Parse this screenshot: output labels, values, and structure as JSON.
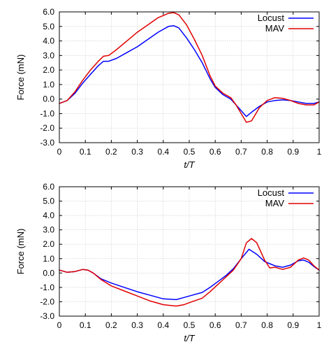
{
  "chart_data": [
    {
      "type": "line",
      "xlabel": "t/T",
      "ylabel": "Force (mN)",
      "xlim": [
        0,
        1
      ],
      "ylim": [
        -3,
        6
      ],
      "xticks": [
        0,
        0.1,
        0.2,
        0.3,
        0.4,
        0.5,
        0.6,
        0.7,
        0.8,
        0.9,
        1
      ],
      "xtick_labels": [
        "0",
        "0.1",
        "0.2",
        "0.3",
        "0.4",
        "0.5",
        "0.6",
        "0.7",
        "0.8",
        "0.9",
        "1"
      ],
      "yticks": [
        -3,
        -2,
        -1,
        0,
        1,
        2,
        3,
        4,
        5,
        6
      ],
      "ytick_labels": [
        "-3.0",
        "-2.0",
        "-1.0",
        "0.0",
        "1.0",
        "2.0",
        "3.0",
        "4.0",
        "5.0",
        "6.0"
      ],
      "grid": true,
      "legend_position": "top-right",
      "series": [
        {
          "name": "Locust",
          "color": "#0000ff",
          "x": [
            0,
            0.03,
            0.06,
            0.09,
            0.12,
            0.15,
            0.17,
            0.19,
            0.22,
            0.26,
            0.3,
            0.34,
            0.38,
            0.42,
            0.44,
            0.46,
            0.49,
            0.52,
            0.55,
            0.58,
            0.6,
            0.63,
            0.66,
            0.68,
            0.7,
            0.72,
            0.74,
            0.77,
            0.8,
            0.83,
            0.86,
            0.89,
            0.92,
            0.95,
            0.98,
            1
          ],
          "y": [
            -0.3,
            -0.1,
            0.4,
            1.1,
            1.7,
            2.3,
            2.6,
            2.6,
            2.8,
            3.2,
            3.6,
            4.1,
            4.6,
            5.0,
            5.05,
            4.9,
            4.2,
            3.4,
            2.5,
            1.4,
            0.8,
            0.3,
            0.0,
            -0.4,
            -0.8,
            -1.2,
            -0.9,
            -0.5,
            -0.2,
            -0.1,
            -0.05,
            -0.1,
            -0.2,
            -0.3,
            -0.3,
            -0.2
          ]
        },
        {
          "name": "MAV",
          "color": "#e00000",
          "x": [
            0,
            0.03,
            0.06,
            0.09,
            0.12,
            0.15,
            0.17,
            0.19,
            0.22,
            0.26,
            0.3,
            0.34,
            0.38,
            0.42,
            0.44,
            0.46,
            0.49,
            0.52,
            0.55,
            0.58,
            0.6,
            0.63,
            0.66,
            0.68,
            0.7,
            0.72,
            0.74,
            0.77,
            0.8,
            0.83,
            0.86,
            0.89,
            0.92,
            0.95,
            0.98,
            1
          ],
          "y": [
            -0.3,
            -0.1,
            0.5,
            1.3,
            2.0,
            2.6,
            2.95,
            3.0,
            3.4,
            4.0,
            4.6,
            5.1,
            5.6,
            5.9,
            5.95,
            5.8,
            5.1,
            4.1,
            3.0,
            1.6,
            0.9,
            0.4,
            0.1,
            -0.4,
            -1.0,
            -1.6,
            -1.5,
            -0.6,
            -0.1,
            0.1,
            0.05,
            -0.1,
            -0.3,
            -0.4,
            -0.4,
            -0.2
          ]
        }
      ]
    },
    {
      "type": "line",
      "xlabel": "t/T",
      "ylabel": "Force (mN)",
      "xlim": [
        0,
        1
      ],
      "ylim": [
        -3,
        6
      ],
      "xticks": [
        0,
        0.1,
        0.2,
        0.3,
        0.4,
        0.5,
        0.6,
        0.7,
        0.8,
        0.9,
        1
      ],
      "xtick_labels": [
        "0",
        "0.1",
        "0.2",
        "0.3",
        "0.4",
        "0.5",
        "0.6",
        "0.7",
        "0.8",
        "0.9",
        "1"
      ],
      "yticks": [
        -3,
        -2,
        -1,
        0,
        1,
        2,
        3,
        4,
        5,
        6
      ],
      "ytick_labels": [
        "-3.0",
        "-2.0",
        "-1.0",
        "0.0",
        "1.0",
        "2.0",
        "3.0",
        "4.0",
        "5.0",
        "6.0"
      ],
      "grid": true,
      "legend_position": "top-right",
      "series": [
        {
          "name": "Locust",
          "color": "#0000ff",
          "x": [
            0,
            0.03,
            0.06,
            0.09,
            0.11,
            0.13,
            0.16,
            0.2,
            0.25,
            0.3,
            0.35,
            0.4,
            0.45,
            0.48,
            0.51,
            0.55,
            0.58,
            0.61,
            0.64,
            0.67,
            0.7,
            0.73,
            0.76,
            0.79,
            0.81,
            0.83,
            0.86,
            0.89,
            0.92,
            0.94,
            0.96,
            0.98,
            1
          ],
          "y": [
            0.2,
            0.05,
            0.1,
            0.25,
            0.2,
            0.0,
            -0.4,
            -0.7,
            -1.0,
            -1.3,
            -1.55,
            -1.8,
            -1.85,
            -1.7,
            -1.55,
            -1.35,
            -1.0,
            -0.6,
            -0.2,
            0.3,
            1.0,
            1.65,
            1.3,
            0.8,
            0.65,
            0.5,
            0.4,
            0.55,
            0.85,
            0.9,
            0.75,
            0.45,
            0.2
          ]
        },
        {
          "name": "MAV",
          "color": "#e00000",
          "x": [
            0,
            0.03,
            0.06,
            0.09,
            0.11,
            0.13,
            0.16,
            0.2,
            0.25,
            0.3,
            0.35,
            0.4,
            0.45,
            0.48,
            0.51,
            0.55,
            0.58,
            0.61,
            0.64,
            0.67,
            0.7,
            0.72,
            0.74,
            0.76,
            0.79,
            0.81,
            0.83,
            0.86,
            0.89,
            0.92,
            0.94,
            0.96,
            0.98,
            1
          ],
          "y": [
            0.2,
            0.05,
            0.1,
            0.25,
            0.2,
            0.0,
            -0.45,
            -0.9,
            -1.25,
            -1.6,
            -1.95,
            -2.2,
            -2.3,
            -2.2,
            -2.0,
            -1.75,
            -1.3,
            -0.8,
            -0.3,
            0.2,
            1.0,
            2.1,
            2.4,
            2.1,
            0.9,
            0.35,
            0.4,
            0.25,
            0.4,
            0.9,
            1.05,
            0.9,
            0.5,
            0.2
          ]
        }
      ]
    }
  ]
}
